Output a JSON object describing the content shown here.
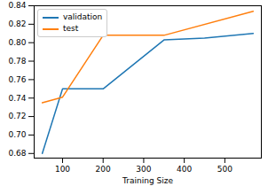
{
  "chart_data": {
    "type": "line",
    "xlabel": "Training Size",
    "xlim": [
      30,
      590
    ],
    "xticks": [
      100,
      200,
      300,
      400,
      500
    ],
    "ylim": [
      0.675,
      0.84
    ],
    "yticks": [
      0.68,
      {
        "value": 0.7,
        "label": "0.70"
      },
      0.72,
      0.74,
      0.76,
      0.78,
      {
        "value": 0.8,
        "label": "0.80"
      },
      0.82,
      0.84
    ],
    "legend": "upper left",
    "series": [
      {
        "name": "validation",
        "color": "#1f77b4",
        "x": [
          50,
          100,
          200,
          350,
          450,
          570
        ],
        "values": [
          0.68,
          0.75,
          0.75,
          0.803,
          0.805,
          0.81
        ]
      },
      {
        "name": "test",
        "color": "#ff7f0e",
        "x": [
          50,
          100,
          200,
          350,
          570
        ],
        "values": [
          0.735,
          0.741,
          0.808,
          0.808,
          0.834
        ]
      }
    ]
  }
}
